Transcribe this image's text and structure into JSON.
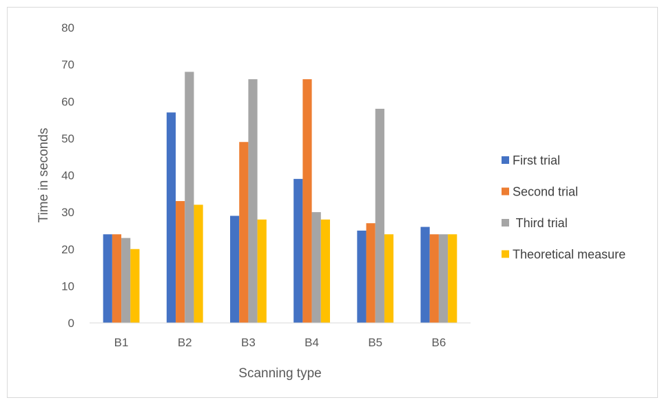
{
  "chart_data": {
    "type": "bar",
    "title": "",
    "xlabel": "Scanning type",
    "ylabel": "Time in seconds",
    "categories": [
      "B1",
      "B2",
      "B3",
      "B4",
      "B5",
      "B6"
    ],
    "ylim": [
      0,
      80
    ],
    "yticks": [
      0,
      10,
      20,
      30,
      40,
      50,
      60,
      70,
      80
    ],
    "grid": false,
    "legend_position": "right",
    "series": [
      {
        "name": "First trial",
        "color": "#4472C4",
        "values": [
          24,
          57,
          29,
          39,
          25,
          26
        ]
      },
      {
        "name": "Second trial",
        "color": "#ED7D31",
        "values": [
          24,
          33,
          49,
          66,
          27,
          24
        ]
      },
      {
        "name": " Third trial",
        "color": "#A5A5A5",
        "values": [
          23,
          68,
          66,
          30,
          58,
          24
        ]
      },
      {
        "name": "Theoretical measure",
        "color": "#FFC000",
        "values": [
          20,
          32,
          28,
          28,
          24,
          24
        ]
      }
    ]
  }
}
